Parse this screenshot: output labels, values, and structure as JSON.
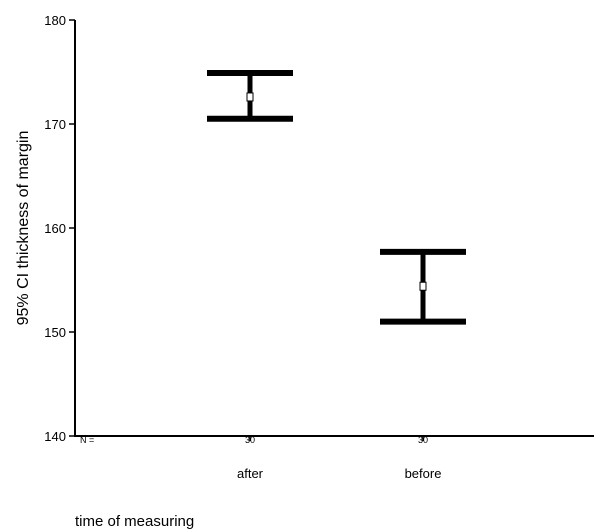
{
  "chart_data": {
    "type": "errorbar",
    "ylabel": "95% CI thickness of margin",
    "xlabel": "time of measuring",
    "ylim": [
      140,
      180
    ],
    "yticks": [
      140,
      150,
      160,
      170,
      180
    ],
    "categories": [
      "after",
      "before"
    ],
    "n_label": "N =",
    "n_values": [
      "30",
      "30"
    ],
    "series": [
      {
        "mean": [
          172.6,
          154.4
        ],
        "lower": [
          170.5,
          151.0
        ],
        "upper": [
          174.9,
          157.7
        ]
      }
    ],
    "grid": false,
    "legend": "none"
  }
}
